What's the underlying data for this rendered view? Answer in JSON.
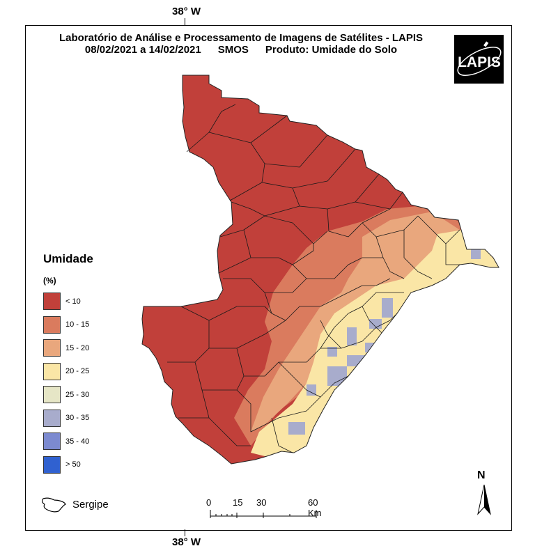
{
  "header": {
    "line1": "Laboratório de Análise e Processamento de Imagens de Satélites - LAPIS",
    "date_range": "08/02/2021  a  14/02/2021",
    "sensor": "SMOS",
    "product": "Produto: Umidade do Solo"
  },
  "coords": {
    "top": "38° W",
    "bottom": "38° W"
  },
  "logo": {
    "text": "LAPIS"
  },
  "legend": {
    "title": "Umidade",
    "unit": "(%)",
    "items": [
      {
        "label": "< 10",
        "color": "#C1403A"
      },
      {
        "label": "10 - 15",
        "color": "#DA7B5E"
      },
      {
        "label": "15 - 20",
        "color": "#E9A77D"
      },
      {
        "label": "20 - 25",
        "color": "#FAE6A6"
      },
      {
        "label": "25 - 30",
        "color": "#E6E6C6"
      },
      {
        "label": "30 - 35",
        "color": "#A8ACCC"
      },
      {
        "label": "35 - 40",
        "color": "#7C8AD0"
      },
      {
        "label": "> 50",
        "color": "#3061D0"
      }
    ]
  },
  "inset": {
    "label": "Sergipe"
  },
  "scale": {
    "labels": [
      "0",
      "15",
      "30",
      "60 Km"
    ]
  },
  "north": {
    "letter": "N"
  }
}
